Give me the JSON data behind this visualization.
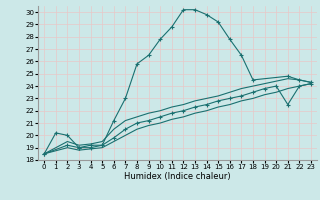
{
  "xlabel": "Humidex (Indice chaleur)",
  "xlim": [
    -0.5,
    23.5
  ],
  "ylim": [
    18,
    30.5
  ],
  "xticks": [
    0,
    1,
    2,
    3,
    4,
    5,
    6,
    7,
    8,
    9,
    10,
    11,
    12,
    13,
    14,
    15,
    16,
    17,
    18,
    19,
    20,
    21,
    22,
    23
  ],
  "yticks": [
    18,
    19,
    20,
    21,
    22,
    23,
    24,
    25,
    26,
    27,
    28,
    29,
    30
  ],
  "bg_color": "#cce8e8",
  "grid_color": "#b0d8d8",
  "line_color": "#1a7070",
  "lines": [
    {
      "x": [
        0,
        1,
        2,
        3,
        4,
        5,
        6,
        7,
        8,
        9,
        10,
        11,
        12,
        13,
        14,
        15,
        16,
        17,
        18,
        21,
        22,
        23
      ],
      "y": [
        18.5,
        20.2,
        20.0,
        19.0,
        19.2,
        19.2,
        21.2,
        23.0,
        25.8,
        26.5,
        27.8,
        28.8,
        30.2,
        30.2,
        29.8,
        29.2,
        27.8,
        26.5,
        24.5,
        24.8,
        24.5,
        24.3
      ],
      "marker": true
    },
    {
      "x": [
        0,
        2,
        3,
        4,
        5,
        6,
        7,
        8,
        9,
        10,
        11,
        12,
        13,
        14,
        15,
        16,
        17,
        18,
        19,
        20,
        21,
        22,
        23
      ],
      "y": [
        18.5,
        19.5,
        19.2,
        19.3,
        19.5,
        20.5,
        21.2,
        21.5,
        21.8,
        22.0,
        22.3,
        22.5,
        22.8,
        23.0,
        23.2,
        23.5,
        23.8,
        24.0,
        24.2,
        24.4,
        24.6,
        24.5,
        24.3
      ],
      "marker": false
    },
    {
      "x": [
        0,
        2,
        3,
        4,
        5,
        6,
        7,
        8,
        9,
        10,
        11,
        12,
        13,
        14,
        15,
        16,
        17,
        18,
        19,
        20,
        21,
        22,
        23
      ],
      "y": [
        18.5,
        19.2,
        19.0,
        19.0,
        19.2,
        19.8,
        20.5,
        21.0,
        21.2,
        21.5,
        21.8,
        22.0,
        22.3,
        22.5,
        22.8,
        23.0,
        23.2,
        23.5,
        23.8,
        24.0,
        22.5,
        24.0,
        24.2
      ],
      "marker": true
    },
    {
      "x": [
        0,
        2,
        3,
        4,
        5,
        6,
        7,
        8,
        9,
        10,
        11,
        12,
        13,
        14,
        15,
        16,
        17,
        18,
        19,
        20,
        21,
        22,
        23
      ],
      "y": [
        18.5,
        19.0,
        18.8,
        18.9,
        19.0,
        19.5,
        20.0,
        20.5,
        20.8,
        21.0,
        21.3,
        21.5,
        21.8,
        22.0,
        22.3,
        22.5,
        22.8,
        23.0,
        23.3,
        23.5,
        23.8,
        24.0,
        24.2
      ],
      "marker": false
    }
  ]
}
